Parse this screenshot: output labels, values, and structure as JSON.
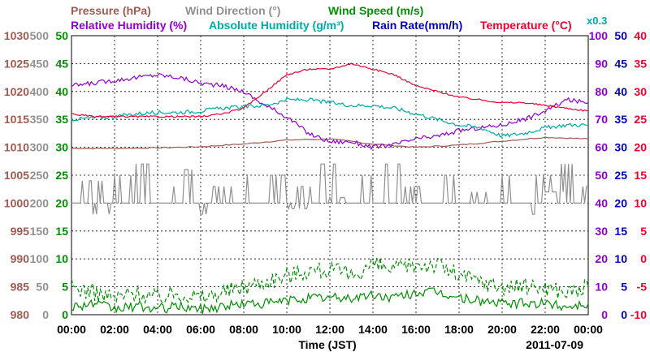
{
  "chart_data": {
    "type": "line",
    "date": "2011-07-09",
    "x_axis": {
      "label": "Time (JST)",
      "ticks": [
        "00:00",
        "02:00",
        "04:00",
        "06:00",
        "08:00",
        "10:00",
        "12:00",
        "14:00",
        "16:00",
        "18:00",
        "20:00",
        "22:00",
        "00:00"
      ],
      "range_hours": [
        0,
        24
      ]
    },
    "legend": {
      "row1": [
        {
          "text": "Pressure (hPa)",
          "color": "#a05a50"
        },
        {
          "text": "Wind Direction (°)",
          "color": "#909090"
        },
        {
          "text": "Wind Speed (m/s)",
          "color": "#009000"
        }
      ],
      "row2": [
        {
          "text": "Relative Humidity (%)",
          "color": "#9000d0"
        },
        {
          "text": "Absolute Humidity (g/m³)",
          "color": "#00a8a8"
        },
        {
          "text": "Rain Rate(mm/h)",
          "color": "#0000c0"
        },
        {
          "text": "Temperature (°C)",
          "color": "#f00030"
        }
      ],
      "scale_note": {
        "text": "x0.3",
        "color": "#00a8a8"
      }
    },
    "left_axes": [
      {
        "name": "Pressure",
        "color": "#a05a50",
        "ticks": [
          "980",
          "985",
          "990",
          "995",
          "1000",
          "1005",
          "1010",
          "1015",
          "1020",
          "1025",
          "1030"
        ],
        "range": [
          980,
          1030
        ]
      },
      {
        "name": "Wind Direction",
        "color": "#909090",
        "ticks": [
          "0",
          "50",
          "100",
          "150",
          "200",
          "250",
          "300",
          "350",
          "400",
          "450",
          "500"
        ],
        "range": [
          0,
          500
        ]
      },
      {
        "name": "Wind Speed",
        "color": "#009000",
        "ticks": [
          "0",
          "5",
          "10",
          "15",
          "20",
          "25",
          "30",
          "35",
          "40",
          "45",
          "50"
        ],
        "range": [
          0,
          50
        ]
      }
    ],
    "right_axes": [
      {
        "name": "Relative Humidity",
        "color": "#9000d0",
        "ticks": [
          "0",
          "10",
          "20",
          "30",
          "40",
          "50",
          "60",
          "70",
          "80",
          "90",
          "100"
        ],
        "range": [
          0,
          100
        ]
      },
      {
        "name": "Rain Rate",
        "color": "#0000c0",
        "ticks": [
          "0",
          "5",
          "10",
          "15",
          "20",
          "25",
          "30",
          "35",
          "40",
          "45",
          "50"
        ],
        "range": [
          0,
          50
        ]
      },
      {
        "name": "Temperature",
        "color": "#f00030",
        "ticks": [
          "-10",
          "-5",
          "0",
          "5",
          "10",
          "15",
          "20",
          "25",
          "30",
          "35",
          "40"
        ],
        "range": [
          -10,
          40
        ]
      }
    ],
    "grid": true,
    "series": [
      {
        "name": "Pressure (hPa)",
        "axis": "pressure",
        "color": "#a05a50",
        "x": [
          0,
          2,
          4,
          6,
          8,
          10,
          12,
          14,
          16,
          18,
          20,
          22,
          24
        ],
        "y": [
          1009.8,
          1009.8,
          1009.9,
          1010.1,
          1010.6,
          1011.3,
          1011.5,
          1010.6,
          1010.0,
          1010.4,
          1011.1,
          1011.8,
          1011.5
        ]
      },
      {
        "name": "Wind Direction (°)",
        "axis": "wind_direction",
        "color": "#909090",
        "x": [
          0,
          0.5,
          1,
          1.5,
          2,
          2.5,
          3,
          3.5,
          4,
          4.5,
          5,
          5.5,
          6,
          6.5,
          7,
          7.5,
          8,
          8.5,
          9,
          9.5,
          10,
          10.5,
          11,
          11.5,
          12,
          12.5,
          13,
          13.5,
          14,
          14.5,
          15,
          15.5,
          16,
          16.5,
          17,
          17.5,
          18,
          18.5,
          19,
          19.5,
          20,
          20.5,
          21,
          21.5,
          22,
          22.5,
          23,
          23.5,
          24
        ],
        "y": [
          250,
          200,
          240,
          180,
          200,
          250,
          200,
          270,
          200,
          230,
          200,
          260,
          200,
          180,
          230,
          200,
          250,
          200,
          200,
          250,
          200,
          190,
          230,
          200,
          270,
          210,
          200,
          250,
          200,
          200,
          270,
          200,
          230,
          200,
          200,
          250,
          200,
          200,
          220,
          200,
          200,
          250,
          200,
          180,
          250,
          220,
          270,
          200,
          230
        ]
      },
      {
        "name": "Wind Speed (m/s) peak",
        "axis": "wind_speed",
        "color": "#009000",
        "dashed": true,
        "x": [
          0,
          1,
          2,
          3,
          4,
          5,
          6,
          7,
          8,
          9,
          10,
          11,
          12,
          13,
          14,
          15,
          16,
          17,
          18,
          19,
          20,
          21,
          22,
          23,
          24
        ],
        "y": [
          5,
          4,
          3,
          4,
          3,
          4,
          3,
          4,
          5,
          6,
          7,
          8,
          8,
          7,
          9,
          8,
          9,
          9,
          7,
          6,
          5,
          5,
          5,
          4,
          5
        ]
      },
      {
        "name": "Wind Speed (m/s)",
        "axis": "wind_speed",
        "color": "#009000",
        "x": [
          0,
          1,
          2,
          3,
          4,
          5,
          6,
          7,
          8,
          9,
          10,
          11,
          12,
          13,
          14,
          15,
          16,
          17,
          18,
          19,
          20,
          21,
          22,
          23,
          24
        ],
        "y": [
          1.5,
          2,
          1,
          1.5,
          1,
          1.5,
          1,
          1.5,
          2,
          2,
          2.5,
          3,
          3,
          3,
          3.5,
          3,
          4,
          4,
          3,
          2.5,
          2,
          2,
          2,
          1.5,
          2
        ]
      },
      {
        "name": "Relative Humidity (%)",
        "axis": "relative_humidity",
        "color": "#9000d0",
        "x": [
          0,
          1,
          2,
          3,
          4,
          5,
          6,
          7,
          8,
          9,
          10,
          11,
          12,
          13,
          14,
          15,
          16,
          17,
          18,
          19,
          20,
          21,
          22,
          23,
          24
        ],
        "y": [
          82,
          83,
          84,
          85,
          86,
          85,
          83,
          82,
          80,
          75,
          71,
          65,
          62,
          62,
          60,
          61,
          63,
          64,
          66,
          67,
          68,
          70,
          73,
          77,
          76
        ]
      },
      {
        "name": "Absolute Humidity (g/m³)",
        "axis": "absolute_humidity",
        "color": "#00a8a8",
        "x": [
          0,
          1,
          2,
          3,
          4,
          5,
          6,
          7,
          8,
          9,
          10,
          11,
          12,
          13,
          14,
          15,
          16,
          17,
          18,
          19,
          20,
          21,
          22,
          23,
          24
        ],
        "y": [
          70,
          70.5,
          71,
          72,
          72.5,
          72.5,
          73,
          74,
          74.5,
          75,
          77,
          77,
          76,
          75,
          75,
          74,
          72,
          70,
          68,
          67,
          64,
          65,
          67,
          68,
          68
        ]
      },
      {
        "name": "Temperature (°C)",
        "axis": "temperature",
        "color": "#f00030",
        "x": [
          0,
          1,
          2,
          3,
          4,
          5,
          6,
          7,
          8,
          9,
          10,
          11,
          12,
          13,
          14,
          15,
          16,
          17,
          18,
          19,
          20,
          21,
          22,
          23,
          24
        ],
        "y": [
          26,
          25.5,
          25.5,
          25.5,
          25.5,
          25.5,
          25.5,
          26,
          27,
          30,
          33,
          34,
          34,
          35,
          34,
          33,
          31,
          30,
          29,
          28.5,
          28,
          28,
          27.5,
          27,
          26.5
        ]
      }
    ]
  }
}
